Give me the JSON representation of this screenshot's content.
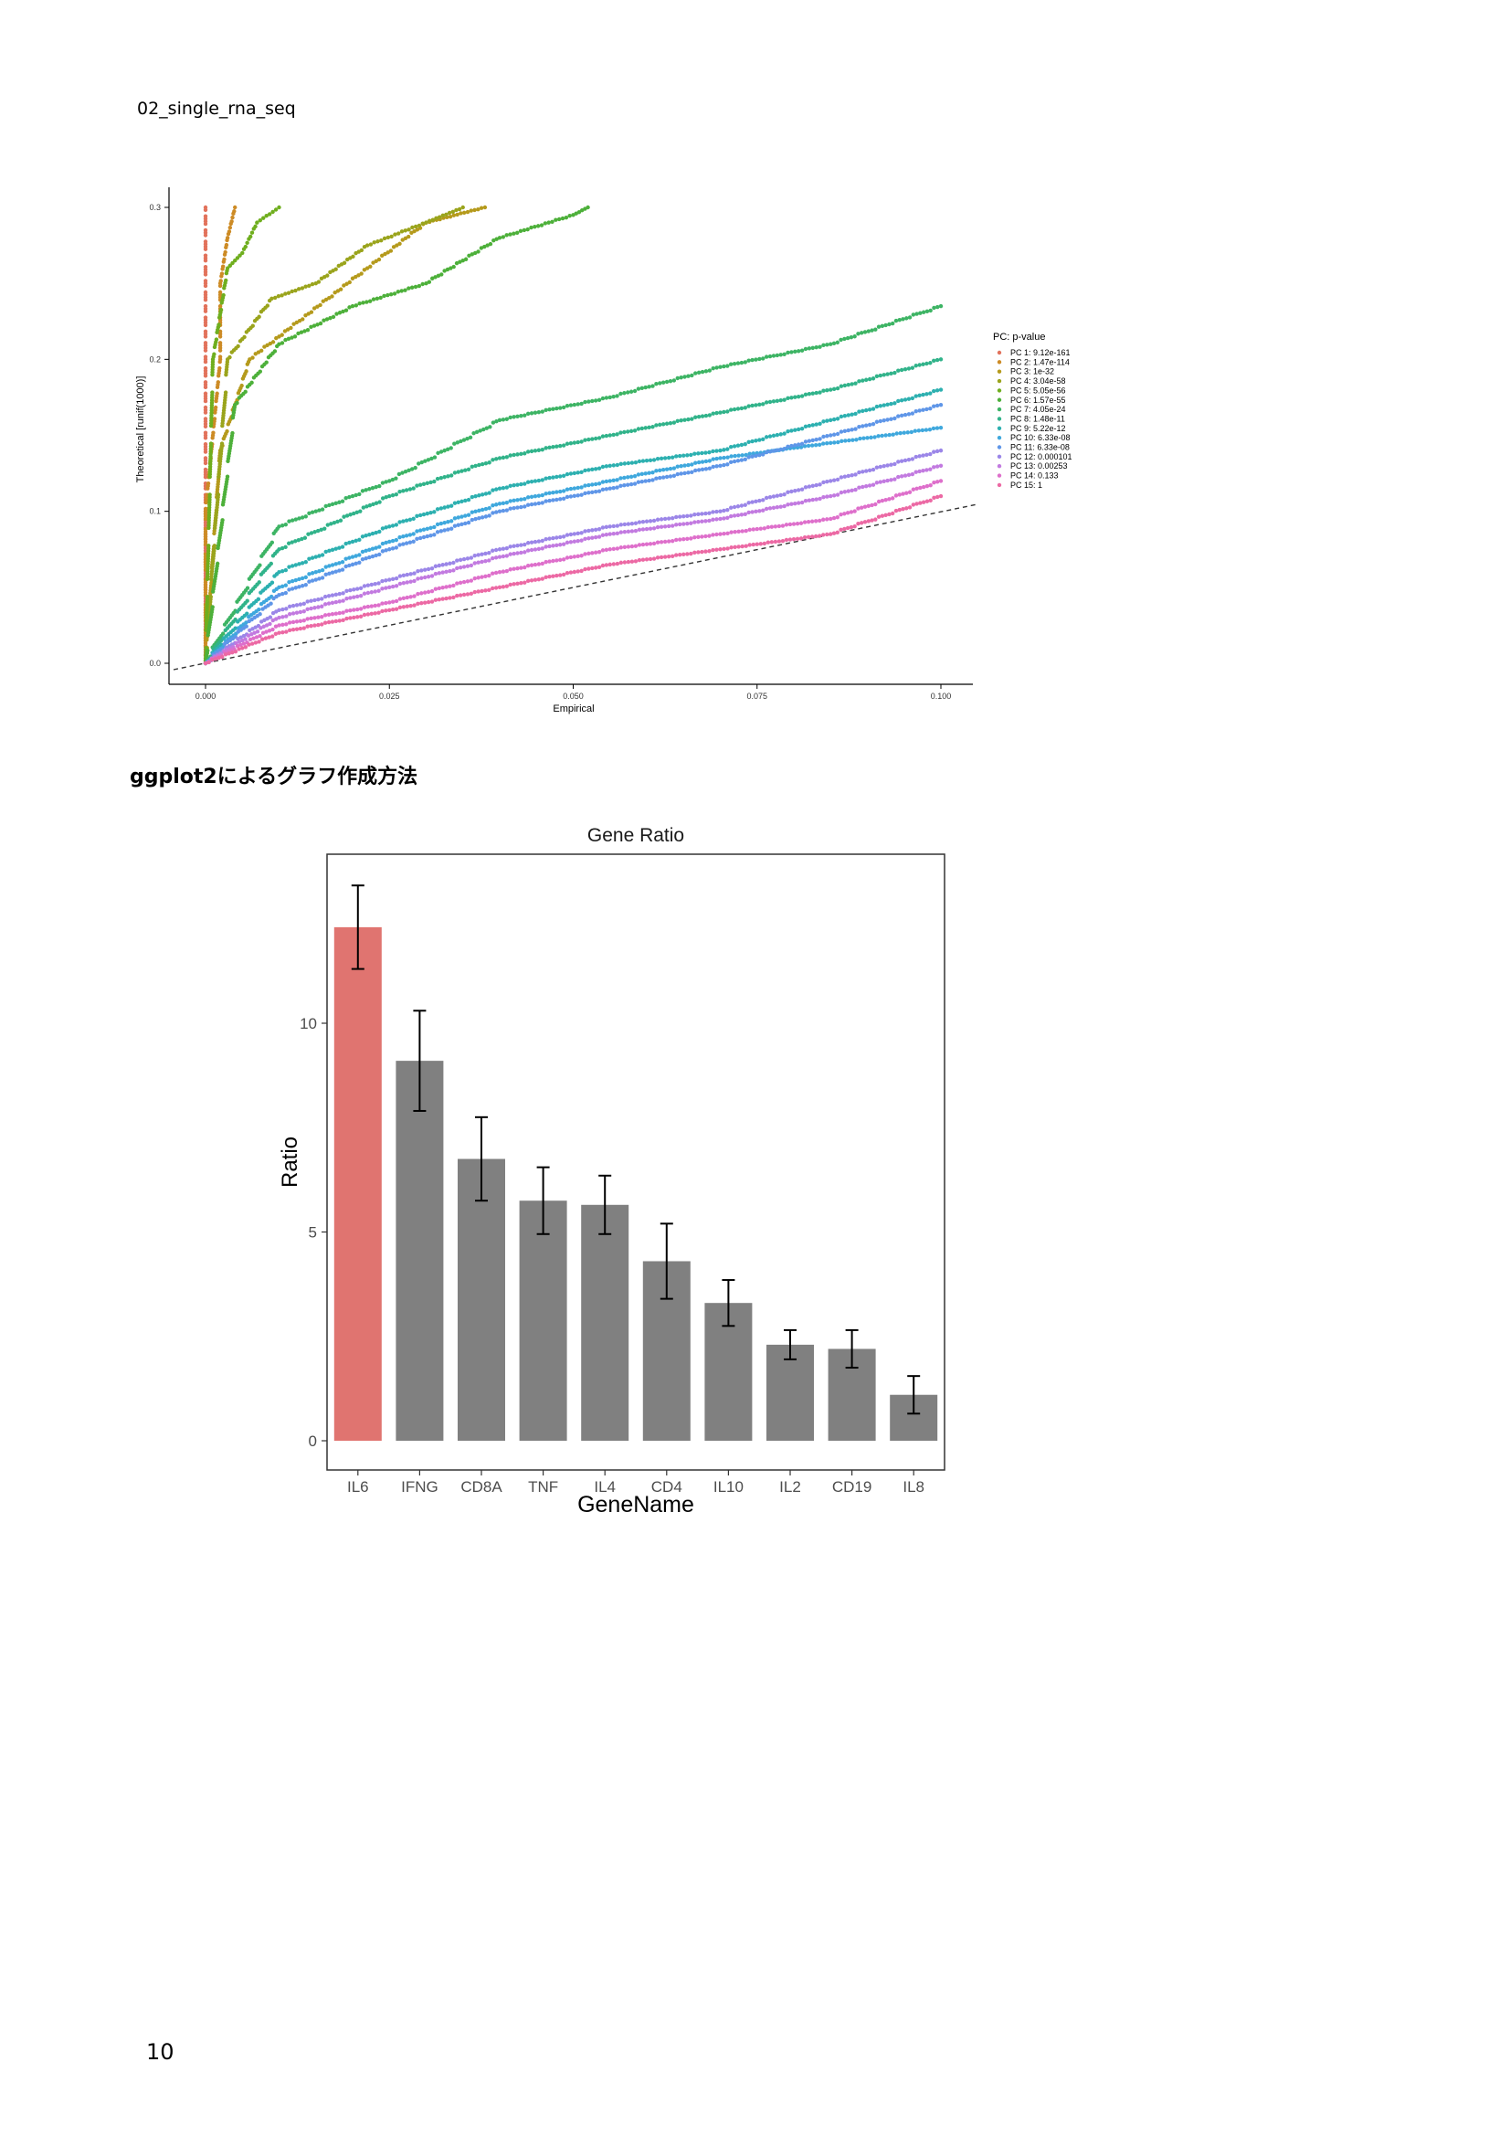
{
  "page": {
    "header_label": "02_single_rna_seq",
    "section_heading": "ggplot2によるグラフ作成方法",
    "page_number": "10"
  },
  "chart_data": [
    {
      "type": "scatter",
      "title": "",
      "xlabel": "Empirical",
      "ylabel": "Theoretical [runif(1000)]",
      "xlim": [
        0,
        0.1
      ],
      "ylim": [
        0,
        0.3
      ],
      "x_ticks": [
        "0.000",
        "0.025",
        "0.050",
        "0.075",
        "0.100"
      ],
      "y_ticks": [
        "0.0",
        "0.1",
        "0.2",
        "0.3"
      ],
      "grid": false,
      "reference_line": "y = x (dashed)",
      "legend_title": "PC: p-value",
      "legend_position": "right",
      "series": [
        {
          "name": "PC 1: 9.12e-161",
          "color": "#E2725B",
          "x": [
            0.0,
            0.0,
            0.0,
            0.0,
            0.0,
            0.0,
            0.0
          ],
          "y": [
            0.0,
            0.05,
            0.1,
            0.15,
            0.2,
            0.25,
            0.3
          ]
        },
        {
          "name": "PC 2: 1.47e-114",
          "color": "#CD8B25",
          "x": [
            0.0,
            0.0,
            0.001,
            0.002,
            0.002,
            0.003,
            0.004
          ],
          "y": [
            0.0,
            0.1,
            0.15,
            0.2,
            0.25,
            0.28,
            0.3
          ]
        },
        {
          "name": "PC 3: 1e-32",
          "color": "#B59A1C",
          "x": [
            0.0,
            0.002,
            0.006,
            0.014,
            0.022,
            0.03,
            0.038
          ],
          "y": [
            0.0,
            0.14,
            0.2,
            0.23,
            0.26,
            0.29,
            0.3
          ]
        },
        {
          "name": "PC 4: 3.04e-58",
          "color": "#9AA41C",
          "x": [
            0.0,
            0.003,
            0.009,
            0.015,
            0.022,
            0.03,
            0.035
          ],
          "y": [
            0.0,
            0.2,
            0.24,
            0.25,
            0.275,
            0.29,
            0.3
          ]
        },
        {
          "name": "PC 5: 5.05e-56",
          "color": "#6FAE1E",
          "x": [
            0.0,
            0.001,
            0.003,
            0.005,
            0.007,
            0.01
          ],
          "y": [
            0.0,
            0.2,
            0.26,
            0.27,
            0.29,
            0.3
          ]
        },
        {
          "name": "PC 6: 1.57e-55",
          "color": "#4DB03A",
          "x": [
            0.0,
            0.004,
            0.01,
            0.02,
            0.03,
            0.04,
            0.05,
            0.052
          ],
          "y": [
            0.0,
            0.17,
            0.21,
            0.235,
            0.25,
            0.28,
            0.295,
            0.3
          ]
        },
        {
          "name": "PC 7: 4.05e-24",
          "color": "#3DB464",
          "x": [
            0.0,
            0.01,
            0.025,
            0.04,
            0.055,
            0.07,
            0.085,
            0.1
          ],
          "y": [
            0.0,
            0.09,
            0.12,
            0.16,
            0.175,
            0.195,
            0.21,
            0.235
          ]
        },
        {
          "name": "PC 8: 1.48e-11",
          "color": "#31B38A",
          "x": [
            0.0,
            0.01,
            0.025,
            0.04,
            0.055,
            0.07,
            0.085,
            0.1
          ],
          "y": [
            0.0,
            0.075,
            0.11,
            0.135,
            0.15,
            0.165,
            0.18,
            0.2
          ]
        },
        {
          "name": "PC 9: 5.22e-12",
          "color": "#2DB0B0",
          "x": [
            0.0,
            0.01,
            0.025,
            0.04,
            0.055,
            0.07,
            0.085,
            0.1
          ],
          "y": [
            0.0,
            0.06,
            0.09,
            0.115,
            0.13,
            0.14,
            0.16,
            0.18
          ]
        },
        {
          "name": "PC 10: 6.33e-08",
          "color": "#3FA8DD",
          "x": [
            0.0,
            0.01,
            0.025,
            0.04,
            0.055,
            0.07,
            0.085,
            0.1
          ],
          "y": [
            0.0,
            0.05,
            0.08,
            0.105,
            0.12,
            0.135,
            0.145,
            0.155
          ]
        },
        {
          "name": "PC 11: 6.33e-08",
          "color": "#5F96E8",
          "x": [
            0.0,
            0.01,
            0.025,
            0.04,
            0.055,
            0.07,
            0.085,
            0.1
          ],
          "y": [
            0.0,
            0.045,
            0.075,
            0.1,
            0.115,
            0.13,
            0.15,
            0.17
          ]
        },
        {
          "name": "PC 12: 0.000101",
          "color": "#9B86E8",
          "x": [
            0.0,
            0.01,
            0.025,
            0.04,
            0.055,
            0.07,
            0.085,
            0.1
          ],
          "y": [
            0.0,
            0.035,
            0.055,
            0.075,
            0.09,
            0.1,
            0.12,
            0.14
          ]
        },
        {
          "name": "PC 13: 0.00253",
          "color": "#C27AE0",
          "x": [
            0.0,
            0.01,
            0.025,
            0.04,
            0.055,
            0.07,
            0.085,
            0.1
          ],
          "y": [
            0.0,
            0.03,
            0.05,
            0.07,
            0.085,
            0.095,
            0.11,
            0.13
          ]
        },
        {
          "name": "PC 14: 0.133",
          "color": "#DE6FCB",
          "x": [
            0.0,
            0.01,
            0.025,
            0.04,
            0.055,
            0.07,
            0.085,
            0.1
          ],
          "y": [
            0.0,
            0.025,
            0.04,
            0.06,
            0.075,
            0.085,
            0.095,
            0.12
          ]
        },
        {
          "name": "PC 15: 1",
          "color": "#EC69A4",
          "x": [
            0.0,
            0.01,
            0.025,
            0.04,
            0.055,
            0.07,
            0.085,
            0.1
          ],
          "y": [
            0.0,
            0.02,
            0.035,
            0.05,
            0.065,
            0.075,
            0.085,
            0.11
          ]
        }
      ]
    },
    {
      "type": "bar",
      "title": "Gene Ratio",
      "xlabel": "GeneName",
      "ylabel": "Ratio",
      "ylim": [
        -0.3,
        14.6
      ],
      "y_ticks": [
        0,
        5,
        10
      ],
      "categories": [
        "IL6",
        "IFNG",
        "CD8A",
        "TNF",
        "IL4",
        "CD4",
        "IL10",
        "IL2",
        "CD19",
        "IL8"
      ],
      "values": [
        12.3,
        9.1,
        6.75,
        5.75,
        5.65,
        4.3,
        3.3,
        2.3,
        2.2,
        1.1
      ],
      "error": [
        1.0,
        1.2,
        1.0,
        0.8,
        0.7,
        0.9,
        0.55,
        0.35,
        0.45,
        0.45
      ],
      "highlight_color": "#E07470",
      "bar_color": "#808080",
      "grid": false
    }
  ]
}
